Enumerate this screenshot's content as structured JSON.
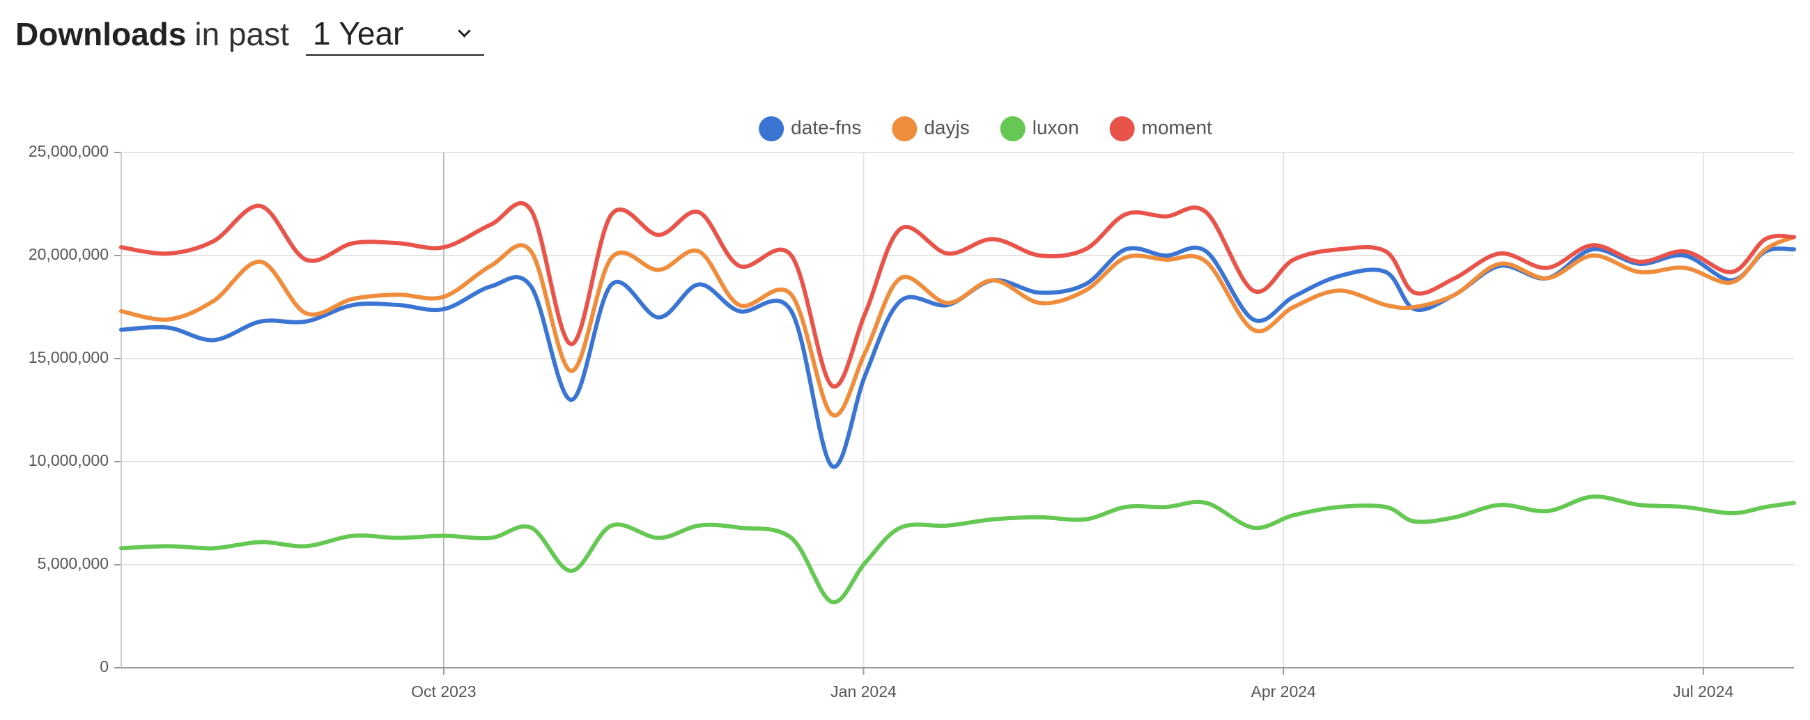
{
  "header": {
    "title": "Downloads",
    "subtitle": "in past",
    "select": "1 Year"
  },
  "chart_data": {
    "type": "line",
    "x": [
      2023.558,
      2023.586,
      2023.613,
      2023.641,
      2023.668,
      2023.696,
      2023.723,
      2023.75,
      2023.778,
      2023.802,
      2023.826,
      2023.85,
      2023.878,
      2023.902,
      2023.926,
      2023.957,
      2023.981,
      2024.001,
      2024.022,
      2024.05,
      2024.077,
      2024.105,
      2024.132,
      2024.156,
      2024.18,
      2024.204,
      2024.232,
      2024.256,
      2024.283,
      2024.311,
      2024.328,
      2024.352,
      2024.379,
      2024.407,
      2024.434,
      2024.462,
      2024.489,
      2024.517,
      2024.537,
      2024.554
    ],
    "series": [
      {
        "name": "date-fns",
        "color": "#3a75d4",
        "values": [
          16400000,
          16500000,
          15900000,
          16800000,
          16800000,
          17600000,
          17600000,
          17400000,
          18500000,
          18500000,
          13000000,
          18600000,
          17000000,
          18600000,
          17300000,
          17300000,
          9800000,
          14200000,
          17800000,
          17600000,
          18800000,
          18200000,
          18600000,
          20300000,
          20000000,
          20200000,
          16900000,
          18000000,
          19000000,
          19200000,
          17400000,
          18100000,
          19500000,
          18900000,
          20300000,
          19600000,
          20000000,
          18800000,
          20200000,
          20300000
        ]
      },
      {
        "name": "dayjs",
        "color": "#ef8d3c",
        "values": [
          17300000,
          16900000,
          17800000,
          19700000,
          17200000,
          17900000,
          18100000,
          18000000,
          19500000,
          20200000,
          14400000,
          19900000,
          19300000,
          20200000,
          17600000,
          18100000,
          12300000,
          15300000,
          18900000,
          17700000,
          18800000,
          17700000,
          18300000,
          19900000,
          19800000,
          19700000,
          16400000,
          17500000,
          18300000,
          17600000,
          17500000,
          18100000,
          19600000,
          18900000,
          20000000,
          19200000,
          19400000,
          18700000,
          20300000,
          20900000
        ]
      },
      {
        "name": "luxon",
        "color": "#65c853",
        "values": [
          5800000,
          5900000,
          5800000,
          6100000,
          5900000,
          6400000,
          6300000,
          6400000,
          6300000,
          6800000,
          4700000,
          6900000,
          6300000,
          6900000,
          6800000,
          6300000,
          3200000,
          5100000,
          6800000,
          6900000,
          7200000,
          7300000,
          7200000,
          7800000,
          7800000,
          8000000,
          6800000,
          7400000,
          7800000,
          7800000,
          7100000,
          7300000,
          7900000,
          7600000,
          8300000,
          7900000,
          7800000,
          7500000,
          7800000,
          8000000
        ]
      },
      {
        "name": "moment",
        "color": "#e9544a",
        "values": [
          20400000,
          20100000,
          20700000,
          22400000,
          19800000,
          20600000,
          20600000,
          20400000,
          21500000,
          22200000,
          15700000,
          22000000,
          21000000,
          22100000,
          19500000,
          20000000,
          13700000,
          17200000,
          21300000,
          20100000,
          20800000,
          20000000,
          20300000,
          22000000,
          21900000,
          22100000,
          18300000,
          19800000,
          20300000,
          20200000,
          18200000,
          18900000,
          20100000,
          19400000,
          20500000,
          19700000,
          20200000,
          19200000,
          20800000,
          20900000
        ]
      }
    ],
    "xlim": [
      2023.558,
      2024.554
    ],
    "xticks": [
      {
        "value": 2023.75,
        "label": "Oct 2023"
      },
      {
        "value": 2024.0,
        "label": "Jan 2024"
      },
      {
        "value": 2024.25,
        "label": "Apr 2024"
      },
      {
        "value": 2024.5,
        "label": "Jul 2024"
      }
    ],
    "ylim": [
      0,
      25000000
    ],
    "yticks": [
      0,
      {
        "value": 5000000,
        "label": "5,000,000"
      },
      {
        "value": 10000000,
        "label": "10,000,000"
      },
      {
        "value": 15000000,
        "label": "15,000,000"
      },
      {
        "value": 20000000,
        "label": "20,000,000"
      },
      {
        "value": 25000000,
        "label": "25,000,000"
      }
    ],
    "grid": true,
    "legend": "top"
  }
}
